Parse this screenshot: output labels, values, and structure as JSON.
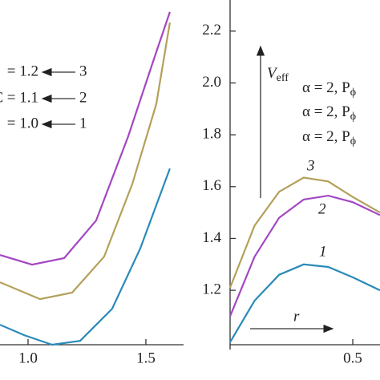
{
  "chart_data": [
    {
      "type": "line",
      "xlim": [
        0.881,
        1.66
      ],
      "ylim": [
        0.99,
        2.32
      ],
      "xticks": [
        {
          "value": 1.0,
          "label": "1.0"
        },
        1.5
      ],
      "series": [
        {
          "name": "3",
          "label": "= 1.2",
          "color": "#a347c2",
          "x": [
            0.881,
            1.017,
            1.153,
            1.289,
            1.425,
            1.527,
            1.602
          ],
          "values": [
            1.336,
            1.299,
            1.324,
            1.469,
            1.794,
            2.073,
            2.274
          ]
        },
        {
          "name": "2",
          "label": "C = 1.1",
          "color": "#b3a05a",
          "x": [
            0.881,
            1.051,
            1.187,
            1.323,
            1.442,
            1.544,
            1.602
          ],
          "values": [
            1.231,
            1.166,
            1.191,
            1.33,
            1.609,
            1.918,
            2.233
          ]
        },
        {
          "name": "1",
          "label": "= 1.0",
          "color": "#2a8ab8",
          "x": [
            0.881,
            0.983,
            1.102,
            1.221,
            1.357,
            1.476,
            1.602
          ],
          "values": [
            1.067,
            1.027,
            0.99,
            1.005,
            1.129,
            1.361,
            1.67
          ]
        }
      ]
    },
    {
      "type": "line",
      "xlim": [
        0,
        0.611
      ],
      "ylim": [
        0.99,
        2.32
      ],
      "xticks": [
        0.5
      ],
      "yticks": [
        1.2,
        1.4,
        1.6,
        1.8,
        {
          "value": 2.0,
          "label": "2.0"
        },
        2.2
      ],
      "ylabel": "V",
      "ylabel_sub": "eff",
      "xlabel": "r",
      "notes": [
        {
          "text": "α = 2, P",
          "sub": "ϕ"
        },
        {
          "text": "α = 2, P",
          "sub": "ϕ"
        },
        {
          "text": "α = 2, P",
          "sub": "ϕ"
        }
      ],
      "series": [
        {
          "name": "3",
          "color": "#b3a05a",
          "x": [
            0,
            0.1,
            0.2,
            0.3,
            0.4,
            0.5,
            0.611
          ],
          "values": [
            1.21,
            1.45,
            1.58,
            1.635,
            1.62,
            1.56,
            1.5
          ]
        },
        {
          "name": "2",
          "color": "#a347c2",
          "x": [
            0,
            0.1,
            0.2,
            0.3,
            0.4,
            0.5,
            0.611
          ],
          "values": [
            1.1,
            1.33,
            1.48,
            1.55,
            1.565,
            1.54,
            1.49
          ]
        },
        {
          "name": "1",
          "color": "#2a8ab8",
          "x": [
            0,
            0.1,
            0.2,
            0.3,
            0.4,
            0.5,
            0.611
          ],
          "values": [
            1.0,
            1.16,
            1.26,
            1.3,
            1.29,
            1.25,
            1.2
          ]
        }
      ]
    }
  ]
}
